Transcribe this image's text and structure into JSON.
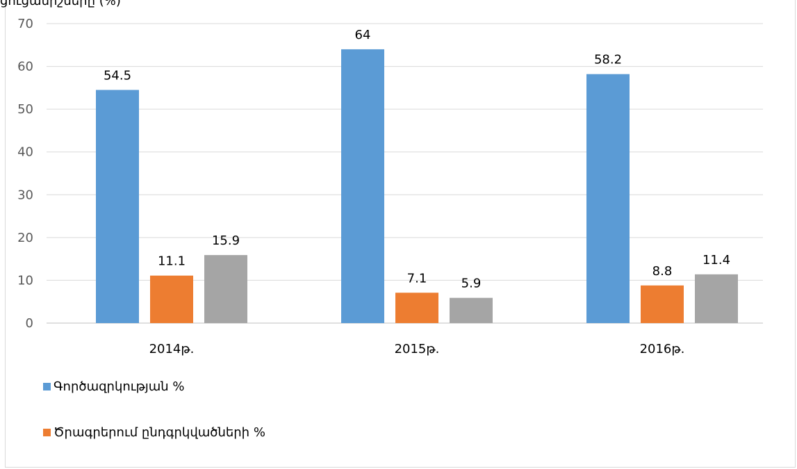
{
  "header_fragment": "ցուցանիշները (%)",
  "chart_data": {
    "type": "bar",
    "categories": [
      "2014թ.",
      "2015թ.",
      "2016թ."
    ],
    "series": [
      {
        "name": "Գործազրկության %",
        "values": [
          54.5,
          64,
          58.2
        ],
        "color": "#5b9bd5"
      },
      {
        "name": "Ծրագրերում ընդգրկվածների %",
        "values": [
          11.1,
          7.1,
          8.8
        ],
        "color": "#ed7d31"
      },
      {
        "values": [
          15.9,
          5.9,
          11.4
        ],
        "color": "#a5a5a5"
      }
    ],
    "ylim": [
      0,
      70
    ],
    "yticks": [
      0,
      10,
      20,
      30,
      40,
      50,
      60,
      70
    ],
    "grid": true,
    "legend_position": "bottom-left"
  }
}
